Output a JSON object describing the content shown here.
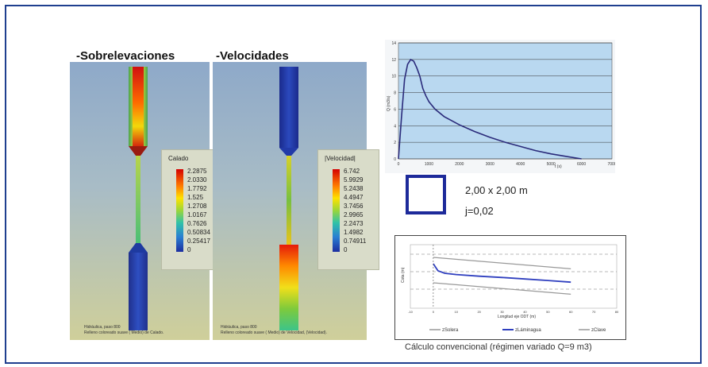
{
  "sections": {
    "left_title": "-Sobrelevaciones",
    "right_title": "-Velocidades"
  },
  "legend_calado": {
    "title": "Calado",
    "values": [
      "2.2875",
      "2.0330",
      "1.7792",
      "1.525",
      "1.2708",
      "1.0167",
      "0.7626",
      "0.50834",
      "0.25417",
      "0"
    ]
  },
  "legend_velocidad": {
    "title": "|Velocidad|",
    "values": [
      "6.742",
      "5.9929",
      "5.2438",
      "4.4947",
      "3.7456",
      "2.9965",
      "2.2473",
      "1.4982",
      "0.74911",
      "0"
    ]
  },
  "footnotes": {
    "left_line1": "Hidráulica, paso 800",
    "left_line2": "Relleno coloreado suave ( Medio) de Calado.",
    "right_line1": "Hidráulica, paso 800",
    "right_line2": "Relleno coloreado suave ( Medio) de Velocidad, (Velocidad)."
  },
  "section_box": {
    "dims": "2,00 x 2,00 m",
    "j": "j=0,02"
  },
  "profile_chart": {
    "ylabel": "Cota (m)",
    "xlabel": "Longitud eje ODT (m)",
    "legend": [
      "zSolera",
      "zLáminagua",
      "zClave"
    ]
  },
  "caption": "Cálculo convencional (régimen variado Q=9 m3)",
  "colors": {
    "border": "#1f3f8f",
    "curve": "#2a2a7a",
    "plot_bg": "#b9d8f0",
    "water": "#2f3fbf"
  },
  "chart_data": [
    {
      "type": "line",
      "title": "",
      "xlabel": "t (s)",
      "ylabel": "Q (m3/s)",
      "xlim": [
        0,
        7000
      ],
      "ylim": [
        0,
        14
      ],
      "xticks": [
        0,
        1000,
        2000,
        3000,
        4000,
        5000,
        6000,
        7000
      ],
      "yticks": [
        0,
        2,
        4,
        6,
        8,
        10,
        12,
        14
      ],
      "grid": true,
      "series": [
        {
          "x": [
            0,
            100,
            200,
            300,
            400,
            500,
            600,
            700,
            800,
            900,
            1000,
            1200,
            1500,
            2000,
            2500,
            3000,
            3500,
            4000,
            4500,
            5000,
            5500,
            6000
          ],
          "y": [
            0,
            5,
            9.6,
            11.4,
            12,
            11.8,
            11,
            10,
            8.5,
            7.6,
            6.9,
            6.0,
            5.1,
            4.1,
            3.3,
            2.6,
            2.0,
            1.5,
            1.0,
            0.6,
            0.3,
            0
          ]
        }
      ]
    },
    {
      "type": "line",
      "title": "",
      "xlabel": "Longitud eje ODT (m)",
      "ylabel": "Cota (m)",
      "xlim": [
        -10,
        80
      ],
      "xticks": [
        -10,
        0,
        10,
        20,
        30,
        40,
        50,
        60,
        70,
        80
      ],
      "series": [
        {
          "name": "zSolera",
          "x": [
            0,
            60
          ],
          "y": [
            0.0,
            -0.9
          ]
        },
        {
          "name": "zLáminagua",
          "x": [
            0,
            2,
            5,
            10,
            20,
            30,
            40,
            50,
            60
          ],
          "y": [
            1.5,
            0.95,
            0.75,
            0.65,
            0.52,
            0.42,
            0.3,
            0.18,
            0.05
          ]
        },
        {
          "name": "zClave",
          "x": [
            0,
            60
          ],
          "y": [
            2.0,
            1.1
          ]
        }
      ]
    }
  ]
}
